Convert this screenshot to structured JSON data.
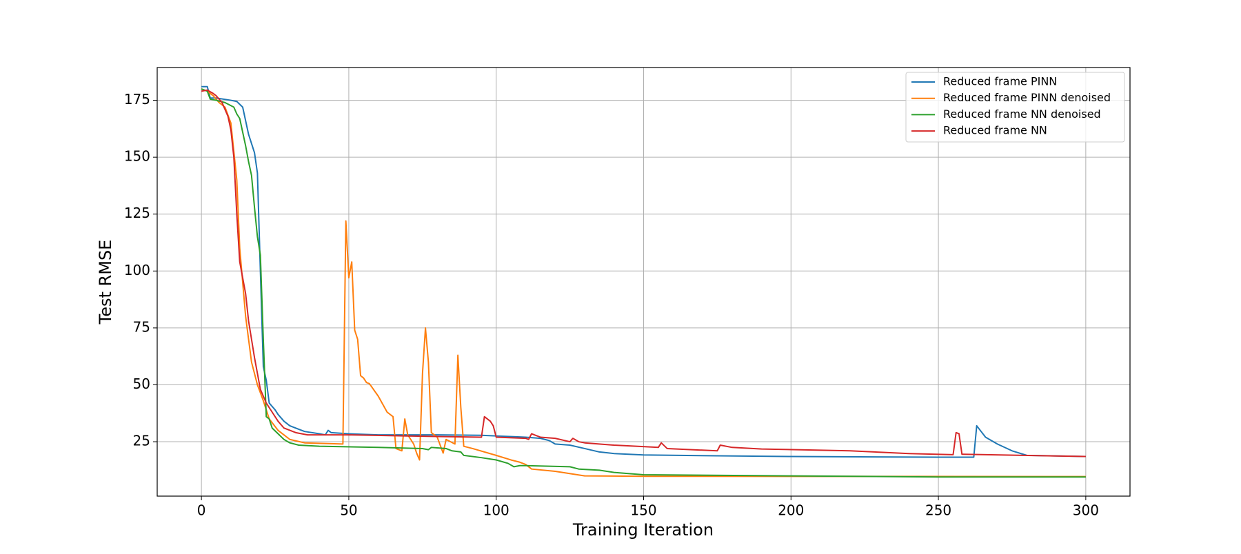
{
  "chart_data": {
    "type": "line",
    "x_label": "Training Iteration",
    "y_label": "Test RMSE",
    "xlim": [
      -15,
      315
    ],
    "ylim": [
      1.1,
      189.4
    ],
    "xticks": [
      0,
      50,
      100,
      150,
      200,
      250,
      300
    ],
    "yticks": [
      25,
      50,
      75,
      100,
      125,
      150,
      175
    ],
    "grid": true,
    "legend": "upper right",
    "series": [
      {
        "name": "Reduced frame PINN",
        "color": "#1f77b4",
        "x": [
          0,
          2,
          3,
          5,
          10,
          12,
          14,
          16,
          18,
          19,
          20,
          21,
          22,
          23,
          25,
          26,
          28,
          30,
          33,
          35,
          40,
          42,
          43,
          44,
          50,
          60,
          80,
          95,
          110,
          115,
          118,
          120,
          125,
          130,
          135,
          140,
          150,
          175,
          200,
          250,
          262,
          263,
          266,
          270,
          275,
          280,
          300
        ],
        "values": [
          181,
          181,
          176,
          176,
          175,
          174.5,
          172,
          160,
          152,
          143,
          100,
          58,
          52,
          42,
          39,
          37,
          34,
          32,
          30.5,
          29.5,
          28.5,
          28,
          30,
          29,
          28.5,
          28,
          28,
          27.8,
          27,
          26.5,
          25.5,
          24,
          23.5,
          22,
          20.5,
          19.8,
          19.2,
          18.8,
          18.5,
          18.2,
          18.2,
          32,
          27,
          24,
          21,
          19,
          18.5
        ]
      },
      {
        "name": "Reduced frame PINN denoised",
        "color": "#ff7f0e",
        "x": [
          0,
          2,
          4,
          6,
          8,
          10,
          12,
          13,
          15,
          17,
          19,
          21,
          23,
          26,
          30,
          35,
          48,
          49,
          50,
          51,
          52,
          53,
          54,
          55,
          56,
          57,
          60,
          63,
          65,
          66,
          68,
          69,
          70,
          72,
          73,
          74,
          75,
          76,
          77,
          78,
          80,
          82,
          83,
          86,
          87,
          88,
          89,
          92,
          100,
          105,
          108,
          110,
          112,
          120,
          130,
          150,
          300
        ],
        "values": [
          180,
          179,
          177,
          174,
          172,
          165,
          140,
          110,
          80,
          60,
          50,
          43,
          35,
          30,
          26,
          24.5,
          24,
          122,
          97,
          104,
          74,
          70,
          54,
          53,
          51,
          50.5,
          45,
          38,
          36,
          22,
          21,
          35,
          28,
          24,
          20,
          17,
          55,
          75,
          60,
          29,
          27,
          20,
          26,
          24,
          63,
          40,
          23,
          22,
          19,
          17,
          16,
          15,
          13,
          12,
          10,
          9.8,
          9.7
        ]
      },
      {
        "name": "Reduced frame NN denoised",
        "color": "#2ca02c",
        "x": [
          0,
          2,
          3,
          5,
          8,
          11,
          12,
          13,
          15,
          16,
          17,
          18,
          19,
          20,
          21,
          22,
          23,
          24,
          26,
          28,
          30,
          33,
          40,
          60,
          75,
          77,
          78,
          83,
          85,
          88,
          89,
          95,
          100,
          104,
          106,
          108,
          110,
          125,
          128,
          135,
          140,
          150,
          200,
          250,
          300
        ],
        "values": [
          180,
          179,
          175.5,
          175,
          174,
          172,
          169,
          167,
          155,
          148,
          142,
          128,
          115,
          107,
          70,
          36,
          35,
          31,
          28.5,
          26,
          24.5,
          23.5,
          23,
          22.5,
          22,
          21.5,
          22.5,
          22,
          21,
          20.5,
          19,
          18,
          17,
          15.5,
          14,
          14.5,
          14.5,
          14,
          13,
          12.5,
          11.5,
          10.5,
          10,
          9.5,
          9.5
        ]
      },
      {
        "name": "Reduced frame NN",
        "color": "#d62728",
        "x": [
          0,
          2,
          4,
          5,
          7,
          9,
          10,
          11,
          12,
          13,
          15,
          16,
          18,
          20,
          22,
          24,
          26,
          28,
          32,
          36,
          50,
          70,
          95,
          96,
          98,
          99,
          100,
          110,
          111,
          112,
          113,
          115,
          120,
          125,
          126,
          128,
          130,
          140,
          155,
          156,
          158,
          175,
          176,
          180,
          190,
          220,
          240,
          255,
          256,
          257,
          258,
          300
        ],
        "values": [
          179,
          179.5,
          178,
          177,
          174,
          168,
          162,
          150,
          125,
          104,
          90,
          78,
          62,
          48,
          42,
          38,
          34,
          31,
          29,
          28,
          28,
          27.5,
          27,
          36,
          34,
          32,
          27,
          26.5,
          26,
          28.5,
          28,
          27,
          26.5,
          25,
          26.5,
          25,
          24.5,
          23.5,
          22.5,
          24.5,
          22,
          21,
          23.5,
          22.5,
          21.8,
          21,
          19.8,
          19.3,
          29,
          28.5,
          19.5,
          18.5
        ]
      }
    ]
  }
}
